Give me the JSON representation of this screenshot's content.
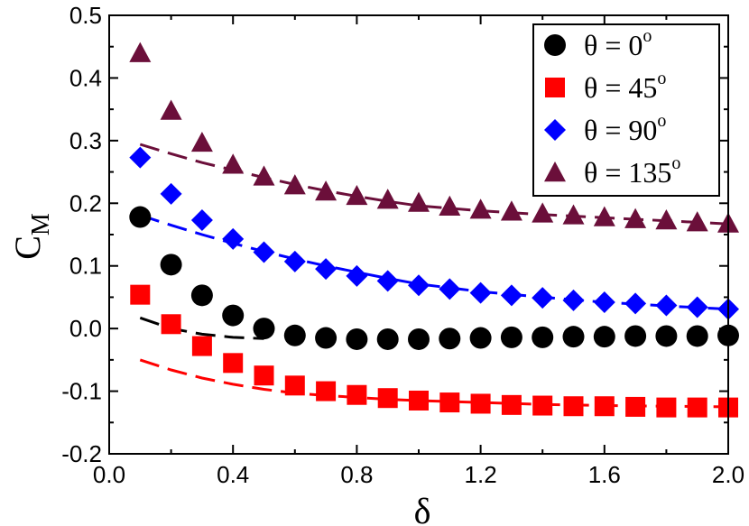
{
  "chart_data": {
    "type": "scatter",
    "title": "",
    "xlabel": "δ",
    "ylabel_main": "C",
    "ylabel_sub": "M",
    "xlim": [
      0.0,
      2.0
    ],
    "ylim": [
      -0.2,
      0.5
    ],
    "x_ticks": [
      {
        "value": 0.0,
        "label": "0.0"
      },
      {
        "value": 0.4,
        "label": "0.4"
      },
      {
        "value": 0.8,
        "label": "0.8"
      },
      {
        "value": 1.2,
        "label": "1.2"
      },
      {
        "value": 1.6,
        "label": "1.6"
      },
      {
        "value": 2.0,
        "label": "2.0"
      }
    ],
    "y_ticks": [
      {
        "value": -0.2,
        "label": "-0.2"
      },
      {
        "value": -0.1,
        "label": "-0.1"
      },
      {
        "value": 0.0,
        "label": "0.0"
      },
      {
        "value": 0.1,
        "label": "0.1"
      },
      {
        "value": 0.2,
        "label": "0.2"
      },
      {
        "value": 0.3,
        "label": "0.3"
      },
      {
        "value": 0.4,
        "label": "0.4"
      },
      {
        "value": 0.5,
        "label": "0.5"
      }
    ],
    "x": [
      0.1,
      0.2,
      0.3,
      0.4,
      0.5,
      0.6,
      0.7,
      0.8,
      0.9,
      1.0,
      1.1,
      1.2,
      1.3,
      1.4,
      1.5,
      1.6,
      1.7,
      1.8,
      1.9,
      2.0
    ],
    "legend_position": "top-right",
    "series": [
      {
        "name": "θ = 0",
        "sup": "o",
        "marker": "circle",
        "color": "#000000",
        "values": [
          0.178,
          0.102,
          0.053,
          0.021,
          0.0,
          -0.011,
          -0.015,
          -0.017,
          -0.017,
          -0.017,
          -0.016,
          -0.015,
          -0.014,
          -0.014,
          -0.013,
          -0.013,
          -0.012,
          -0.012,
          -0.012,
          -0.011
        ],
        "fit": {
          "x": [
            0.1,
            0.2,
            0.3,
            0.4,
            0.5
          ],
          "y": [
            0.017,
            0.0,
            -0.009,
            -0.014,
            -0.016
          ]
        }
      },
      {
        "name": "θ = 45",
        "sup": "o",
        "marker": "square",
        "color": "#ff0000",
        "values": [
          0.054,
          0.007,
          -0.028,
          -0.055,
          -0.075,
          -0.091,
          -0.1,
          -0.106,
          -0.111,
          -0.115,
          -0.118,
          -0.12,
          -0.122,
          -0.123,
          -0.124,
          -0.124,
          -0.125,
          -0.126,
          -0.126,
          -0.126
        ],
        "fit": {
          "x": [
            0.1,
            0.2,
            0.3,
            0.4,
            0.5,
            0.6,
            0.7,
            0.8,
            0.9,
            1.0,
            1.2,
            1.4,
            1.6,
            1.8,
            2.0
          ],
          "y": [
            -0.05,
            -0.066,
            -0.079,
            -0.089,
            -0.097,
            -0.103,
            -0.107,
            -0.11,
            -0.113,
            -0.115,
            -0.118,
            -0.121,
            -0.123,
            -0.124,
            -0.125
          ]
        }
      },
      {
        "name": "θ = 90",
        "sup": "o",
        "marker": "diamond",
        "color": "#0000ff",
        "values": [
          0.273,
          0.215,
          0.173,
          0.143,
          0.122,
          0.107,
          0.095,
          0.084,
          0.076,
          0.069,
          0.063,
          0.057,
          0.053,
          0.049,
          0.045,
          0.042,
          0.04,
          0.037,
          0.034,
          0.031
        ],
        "fit": {
          "x": [
            0.1,
            0.2,
            0.3,
            0.4,
            0.5,
            0.6,
            0.7,
            0.8,
            0.9,
            1.0,
            1.2,
            1.4,
            1.6,
            1.8,
            2.0
          ],
          "y": [
            0.181,
            0.165,
            0.15,
            0.136,
            0.123,
            0.111,
            0.1,
            0.09,
            0.08,
            0.071,
            0.059,
            0.05,
            0.042,
            0.036,
            0.031
          ]
        }
      },
      {
        "name": "θ = 135",
        "sup": "o",
        "marker": "triangle",
        "color": "#6b0f3a",
        "values": [
          0.44,
          0.348,
          0.297,
          0.262,
          0.243,
          0.229,
          0.219,
          0.212,
          0.206,
          0.201,
          0.195,
          0.19,
          0.187,
          0.184,
          0.181,
          0.178,
          0.175,
          0.173,
          0.17,
          0.168
        ],
        "fit": {
          "x": [
            0.1,
            0.2,
            0.3,
            0.4,
            0.5,
            0.6,
            0.7,
            0.8,
            0.9,
            1.0,
            1.2,
            1.4,
            1.6,
            1.8,
            2.0
          ],
          "y": [
            0.294,
            0.279,
            0.265,
            0.253,
            0.241,
            0.23,
            0.22,
            0.211,
            0.203,
            0.196,
            0.188,
            0.182,
            0.177,
            0.172,
            0.167
          ]
        }
      }
    ]
  }
}
